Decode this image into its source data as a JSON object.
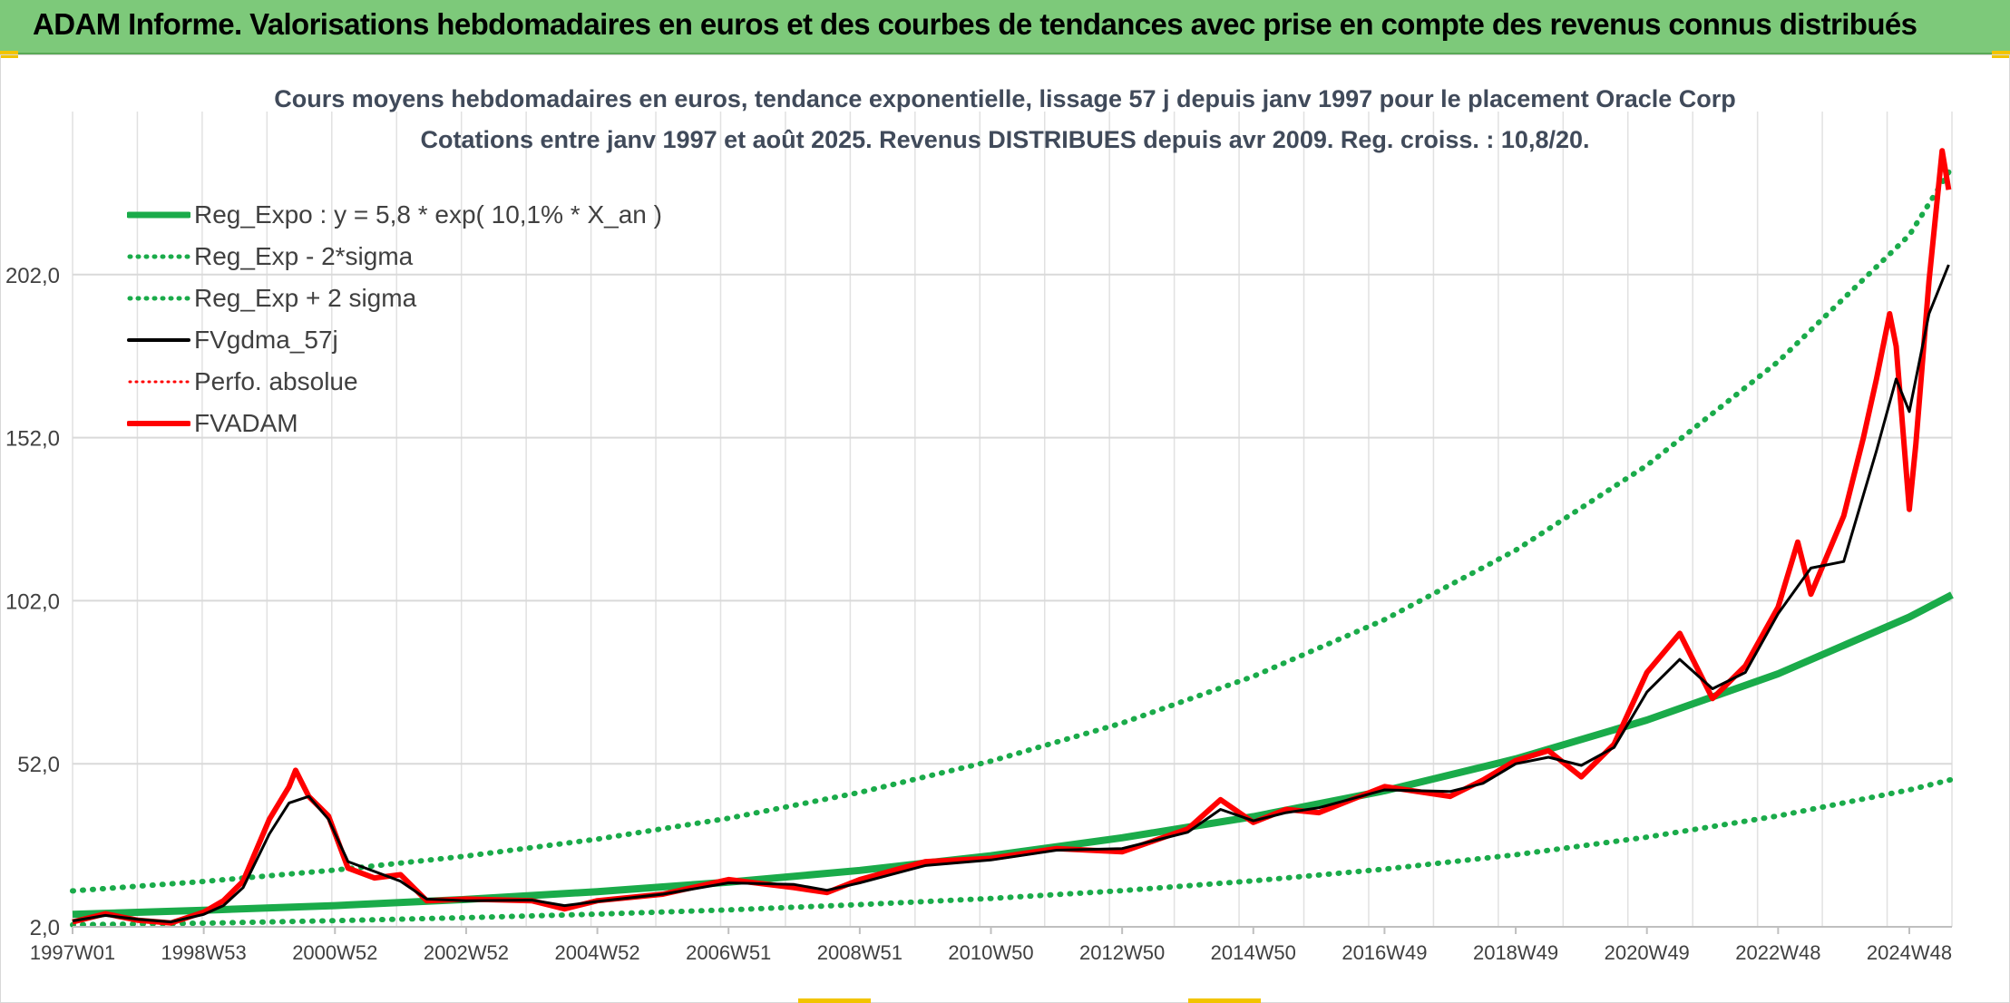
{
  "banner": {
    "text": "ADAM Informe. Valorisations hebdomadaires en euros et des courbes de tendances avec prise en compte des revenus connus distribués"
  },
  "colors": {
    "banner_bg": "#7dc97a",
    "reg_expo": "#1aab4a",
    "fvgdma": "#000000",
    "fvadam": "#ff0000",
    "grid": "#e1e1e1"
  },
  "chart_data": {
    "type": "line",
    "title": "Cours moyens hebdomadaires en euros, tendance exponentielle, lissage 57 j depuis janv 1997 pour le placement Oracle Corp",
    "subtitle": "Cotations entre janv 1997 et août 2025. Revenus DISTRIBUES depuis avr 2009. Reg. croiss. : 10,8/20.",
    "xlim": [
      1997.0,
      2025.65
    ],
    "ylim": [
      2,
      252
    ],
    "y_ticks": [
      2,
      52,
      102,
      152,
      202
    ],
    "y_tick_labels": [
      "2,0",
      "52,0",
      "102,0",
      "152,0",
      "202,0"
    ],
    "x_tick_labels": [
      "1997W01",
      "1998W53",
      "2000W52",
      "2002W52",
      "2004W52",
      "2006W51",
      "2008W51",
      "2010W50",
      "2012W50",
      "2014W50",
      "2016W49",
      "2018W49",
      "2020W49",
      "2022W48",
      "2024W48"
    ],
    "x_tick_years": [
      1997.0,
      1999.0,
      2001.0,
      2003.0,
      2005.0,
      2007.0,
      2009.0,
      2011.0,
      2013.0,
      2015.0,
      2017.0,
      2019.0,
      2021.0,
      2023.0,
      2025.0
    ],
    "legend": [
      {
        "label": "Reg_Expo : y = 5,8 * exp( 10,1% *  X_an )",
        "style": "solid-green-thick"
      },
      {
        "label": "Reg_Exp - 2*sigma",
        "style": "dotted-green"
      },
      {
        "label": "Reg_Exp + 2 sigma",
        "style": "dotted-green"
      },
      {
        "label": "FVgdma_57j",
        "style": "solid-black"
      },
      {
        "label": "Perfo. absolue",
        "style": "dotted-red"
      },
      {
        "label": "FVADAM",
        "style": "solid-red-thick"
      }
    ],
    "series": [
      {
        "name": "Reg_Expo : y = 5,8 * exp( 10,1% *  X_an )",
        "x": [
          1997.0,
          1999.0,
          2001.0,
          2003.0,
          2005.0,
          2007.0,
          2009.0,
          2011.0,
          2013.0,
          2015.0,
          2017.0,
          2019.0,
          2021.0,
          2023.0,
          2025.0,
          2025.65
        ],
        "values": [
          5.8,
          7.1,
          8.5,
          10.4,
          12.8,
          15.7,
          19.3,
          23.8,
          29.3,
          35.8,
          43.7,
          53.5,
          65.4,
          79.6,
          97.0,
          103.8
        ]
      },
      {
        "name": "Reg_Exp - 2*sigma",
        "x": [
          1997.0,
          1999.0,
          2001.0,
          2003.0,
          2005.0,
          2007.0,
          2009.0,
          2011.0,
          2013.0,
          2015.0,
          2017.0,
          2019.0,
          2021.0,
          2023.0,
          2025.0,
          2025.65
        ],
        "values": [
          2.6,
          3.1,
          3.9,
          4.8,
          5.9,
          7.2,
          8.8,
          10.7,
          13.1,
          16.1,
          19.7,
          24.1,
          29.5,
          36.0,
          44.0,
          47.2
        ]
      },
      {
        "name": "Reg_Exp + 2 sigma",
        "x": [
          1997.0,
          1999.0,
          2001.0,
          2003.0,
          2005.0,
          2007.0,
          2009.0,
          2011.0,
          2013.0,
          2015.0,
          2017.0,
          2019.0,
          2021.0,
          2023.0,
          2025.0,
          2025.65
        ],
        "values": [
          13.0,
          15.9,
          19.4,
          23.7,
          28.9,
          35.3,
          43.2,
          52.8,
          64.5,
          78.8,
          96.2,
          117.5,
          143.5,
          175.3,
          214.1,
          235.0
        ]
      },
      {
        "name": "FVgdma_57j",
        "x": [
          1997.0,
          1997.5,
          1998.0,
          1998.5,
          1999.0,
          1999.3,
          1999.6,
          2000.0,
          2000.3,
          2000.6,
          2000.9,
          2001.2,
          2001.6,
          2002.0,
          2002.4,
          2003.0,
          2004.0,
          2004.5,
          2005.0,
          2006.0,
          2007.0,
          2008.0,
          2008.5,
          2009.0,
          2010.0,
          2011.0,
          2012.0,
          2013.0,
          2014.0,
          2014.5,
          2015.0,
          2015.5,
          2016.0,
          2017.0,
          2018.0,
          2018.5,
          2019.0,
          2019.5,
          2020.0,
          2020.5,
          2021.0,
          2021.5,
          2022.0,
          2022.5,
          2023.0,
          2023.5,
          2024.0,
          2024.5,
          2024.8,
          2025.0,
          2025.3,
          2025.6
        ],
        "values": [
          3.8,
          5.5,
          4.3,
          3.5,
          5.8,
          8.5,
          14.0,
          30.5,
          40.0,
          42.0,
          35.0,
          22.0,
          19.0,
          16.0,
          10.5,
          10.0,
          10.2,
          8.5,
          9.8,
          12.0,
          15.5,
          15.0,
          13.2,
          15.5,
          20.8,
          22.5,
          25.5,
          26.0,
          31.0,
          38.0,
          34.5,
          37.0,
          38.5,
          44.0,
          43.5,
          46.0,
          52.0,
          54.0,
          51.5,
          57.0,
          74.0,
          84.0,
          75.0,
          80.0,
          98.0,
          112.0,
          114.0,
          148.0,
          170.0,
          160.0,
          190.0,
          205.0
        ]
      },
      {
        "name": "FVADAM",
        "x": [
          1997.0,
          1997.5,
          1998.0,
          1998.5,
          1999.0,
          1999.3,
          1999.6,
          2000.0,
          2000.3,
          2000.4,
          2000.6,
          2000.9,
          2001.2,
          2001.6,
          2002.0,
          2002.4,
          2003.0,
          2004.0,
          2004.5,
          2005.0,
          2006.0,
          2007.0,
          2008.0,
          2008.5,
          2009.0,
          2010.0,
          2011.0,
          2012.0,
          2013.0,
          2014.0,
          2014.5,
          2015.0,
          2015.5,
          2016.0,
          2017.0,
          2018.0,
          2018.5,
          2019.0,
          2019.5,
          2020.0,
          2020.5,
          2021.0,
          2021.5,
          2022.0,
          2022.5,
          2023.0,
          2023.3,
          2023.5,
          2024.0,
          2024.3,
          2024.5,
          2024.7,
          2024.8,
          2025.0,
          2025.1,
          2025.3,
          2025.5,
          2025.6
        ],
        "values": [
          3.5,
          6.0,
          4.0,
          3.2,
          6.5,
          10.0,
          16.0,
          35.0,
          45.0,
          50.0,
          42.0,
          36.0,
          20.0,
          17.0,
          18.0,
          10.0,
          10.5,
          10.0,
          7.5,
          10.0,
          12.0,
          16.5,
          14.0,
          12.5,
          16.5,
          22.0,
          23.0,
          26.0,
          25.0,
          32.0,
          41.0,
          34.0,
          38.0,
          37.0,
          45.0,
          42.0,
          47.0,
          53.0,
          56.0,
          48.0,
          58.0,
          80.0,
          92.0,
          72.0,
          82.0,
          100.0,
          120.0,
          104.0,
          128.0,
          152.0,
          170.0,
          190.0,
          180.0,
          130.0,
          150.0,
          200.0,
          240.0,
          228.0
        ]
      }
    ]
  }
}
